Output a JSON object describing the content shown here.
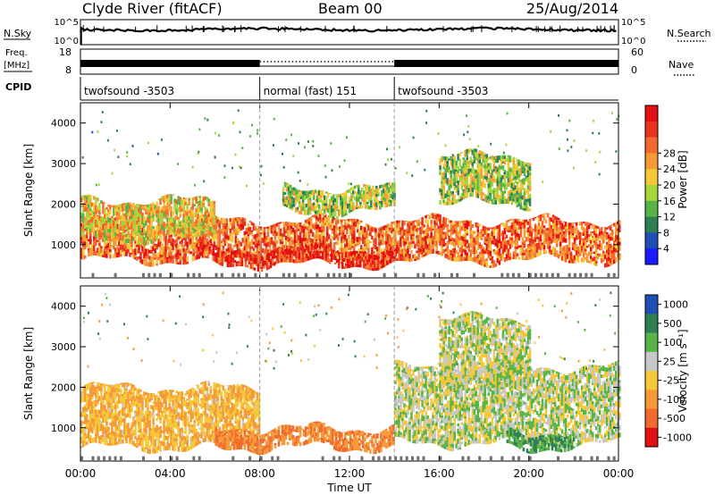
{
  "header": {
    "station": "Clyde River (fitACF)",
    "beam": "Beam 00",
    "date": "25/Aug/2014"
  },
  "strip": {
    "nsky_label": "N.Sky",
    "nsearch_label": "N.Search",
    "freq_label_1": "Freq.",
    "freq_label_2": "[MHz]",
    "nave_label": "Nave",
    "cpid_label": "CPID",
    "noise_ticks": [
      "10^5",
      "10^0"
    ],
    "freq_ticks": [
      "18",
      "8"
    ],
    "nave_ticks": [
      "60",
      "0"
    ]
  },
  "cpid_segments": [
    {
      "label": "twofsound -3503",
      "start_hour": 0,
      "end_hour": 8
    },
    {
      "label": "normal (fast) 151",
      "start_hour": 8,
      "end_hour": 14
    },
    {
      "label": "twofsound -3503",
      "start_hour": 14,
      "end_hour": 24
    }
  ],
  "axes": {
    "xlabel": "Time UT",
    "ylabel": "Slant Range [km]",
    "xticks": [
      "00:00",
      "04:00",
      "08:00",
      "12:00",
      "16:00",
      "20:00",
      "00:00"
    ],
    "yticks": [
      "1000",
      "2000",
      "3000",
      "4000"
    ]
  },
  "power_colorbar": {
    "label": "Power [dB]",
    "ticks": [
      "4",
      "8",
      "12",
      "16",
      "20",
      "24",
      "28"
    ],
    "colors": [
      "#1a1aff",
      "#1f4fb4",
      "#2f7f55",
      "#58b446",
      "#a6d63c",
      "#f5c83a",
      "#f59a36",
      "#f26b2e",
      "#e8321f",
      "#e40f0f"
    ]
  },
  "velocity_colorbar": {
    "label": "Velocity [m s⁻¹]",
    "ticks": [
      "1000",
      "500",
      "100",
      "25",
      "-25",
      "-100",
      "-500",
      "-1000"
    ],
    "colors": [
      "#1f4fb4",
      "#2f7f55",
      "#58b446",
      "#c8c8c8",
      "#f5c83a",
      "#f59a36",
      "#f26b2e",
      "#e40f0f"
    ]
  },
  "chart_data": [
    {
      "type": "heatmap",
      "title": "Clyde River (fitACF) Beam 00 25/Aug/2014",
      "xlabel": "Time UT",
      "ylabel": "Slant Range [km]",
      "xlim": [
        0,
        24
      ],
      "ylim": [
        180,
        4500
      ],
      "quantity": "Power [dB]",
      "zlim": [
        0,
        32
      ],
      "echo_bands": [
        {
          "start_hour": 0,
          "end_hour": 24,
          "range_km": [
            600,
            1600
          ],
          "power_db": 24
        },
        {
          "start_hour": 5,
          "end_hour": 14,
          "range_km": [
            500,
            900
          ],
          "power_db": 28
        },
        {
          "start_hour": 0,
          "end_hour": 6,
          "range_km": [
            1100,
            2100
          ],
          "power_db": 18
        },
        {
          "start_hour": 9,
          "end_hour": 14,
          "range_km": [
            1800,
            2400
          ],
          "power_db": 14
        },
        {
          "start_hour": 16,
          "end_hour": 20,
          "range_km": [
            2000,
            3200
          ],
          "power_db": 14
        }
      ]
    },
    {
      "type": "heatmap",
      "xlabel": "Time UT",
      "ylabel": "Slant Range [km]",
      "xlim": [
        0,
        24
      ],
      "ylim": [
        180,
        4500
      ],
      "quantity": "Velocity [m s⁻¹]",
      "zlim": [
        -1000,
        1000
      ],
      "echo_bands": [
        {
          "start_hour": 0,
          "end_hour": 8,
          "range_km": [
            500,
            2000
          ],
          "velocity_ms": -100
        },
        {
          "start_hour": 6,
          "end_hour": 14,
          "range_km": [
            500,
            1000
          ],
          "velocity_ms": -300
        },
        {
          "start_hour": 14,
          "end_hour": 24,
          "range_km": [
            600,
            2500
          ],
          "velocity_ms": 0
        },
        {
          "start_hour": 19,
          "end_hour": 22,
          "range_km": [
            500,
            900
          ],
          "velocity_ms": 100
        },
        {
          "start_hour": 16,
          "end_hour": 20,
          "range_km": [
            2000,
            3700
          ],
          "velocity_ms": 0
        }
      ]
    }
  ]
}
